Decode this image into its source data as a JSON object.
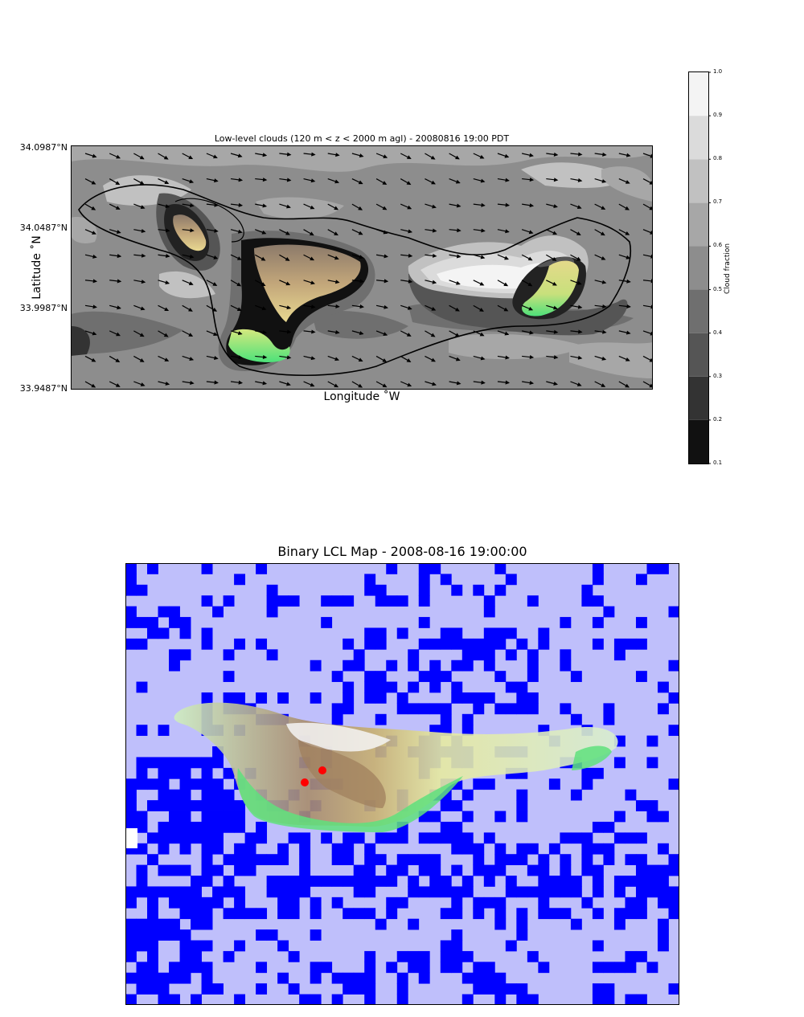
{
  "chart_data": [
    {
      "type": "heatmap",
      "subtype": "filled contour map with wind vectors",
      "title": "Low-level clouds (120 m < z < 2000 m agl) - 20080816 19:00 PDT",
      "xlabel": "Longitude $^\\circ$W",
      "ylabel": "Latitude $^\\circ$N",
      "xlabel_display": "Longitude ˚W",
      "ylabel_display": "Latitude ˚N",
      "y_tick_labels": [
        "34.0987°N",
        "34.0487°N",
        "33.9987°N",
        "33.9487°N"
      ],
      "colorbar": {
        "label": "Cloud fraction",
        "ticks": [
          "1.0",
          "0.9",
          "0.8",
          "0.7",
          "0.6",
          "0.5",
          "0.4",
          "0.3",
          "0.2",
          "0.1"
        ],
        "range": [
          0.1,
          1.0
        ],
        "levels": [
          {
            "from": 0.1,
            "to": 0.2,
            "color": "#111111"
          },
          {
            "from": 0.2,
            "to": 0.3,
            "color": "#333333"
          },
          {
            "from": 0.3,
            "to": 0.4,
            "color": "#555555"
          },
          {
            "from": 0.4,
            "to": 0.5,
            "color": "#6f6f6f"
          },
          {
            "from": 0.5,
            "to": 0.6,
            "color": "#8d8d8d"
          },
          {
            "from": 0.6,
            "to": 0.7,
            "color": "#a7a7a7"
          },
          {
            "from": 0.7,
            "to": 0.8,
            "color": "#c1c1c1"
          },
          {
            "from": 0.8,
            "to": 0.9,
            "color": "#dbdbdb"
          },
          {
            "from": 0.9,
            "to": 1.0,
            "color": "#f4f4f4"
          }
        ]
      },
      "wind_arrows": "present on a regular grid, mostly pointing east-southeast",
      "terrain_overlay": "green-yellow-brown shaded peaks visible inside cloud-free holes",
      "coastline": "black outline of the island"
    },
    {
      "type": "heatmap",
      "subtype": "binary grid map",
      "title": "Binary LCL Map - 2008-08-16 19:00:00",
      "grid_cols": 51,
      "grid_rows": 41,
      "categories": [
        {
          "value": 0,
          "color": "#bfbffb"
        },
        {
          "value": 1,
          "color": "#0000ff"
        }
      ],
      "markers": [
        {
          "color": "#ff0000",
          "label": ""
        },
        {
          "color": "#ff0000",
          "label": ""
        }
      ],
      "terrain_overlay": "island terrain shaded green-yellow-brown-white"
    }
  ]
}
